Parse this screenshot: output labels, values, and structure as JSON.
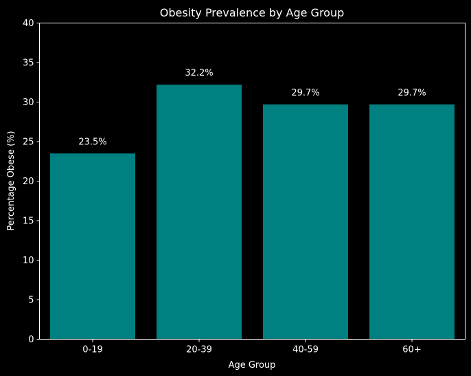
{
  "chart_data": {
    "type": "bar",
    "title": "Obesity Prevalence by Age Group",
    "xlabel": "Age Group",
    "ylabel": "Percentage Obese (%)",
    "categories": [
      "0-19",
      "20-39",
      "40-59",
      "60+"
    ],
    "values": [
      23.5,
      32.2,
      29.7,
      29.7
    ],
    "data_labels": [
      "23.5%",
      "32.2%",
      "29.7%",
      "29.7%"
    ],
    "ylim": [
      0,
      40
    ],
    "yticks": [
      0,
      5,
      10,
      15,
      20,
      25,
      30,
      35,
      40
    ],
    "grid": false,
    "bar_color": "#008080",
    "background_color": "#000000",
    "text_color": "#ffffff"
  }
}
